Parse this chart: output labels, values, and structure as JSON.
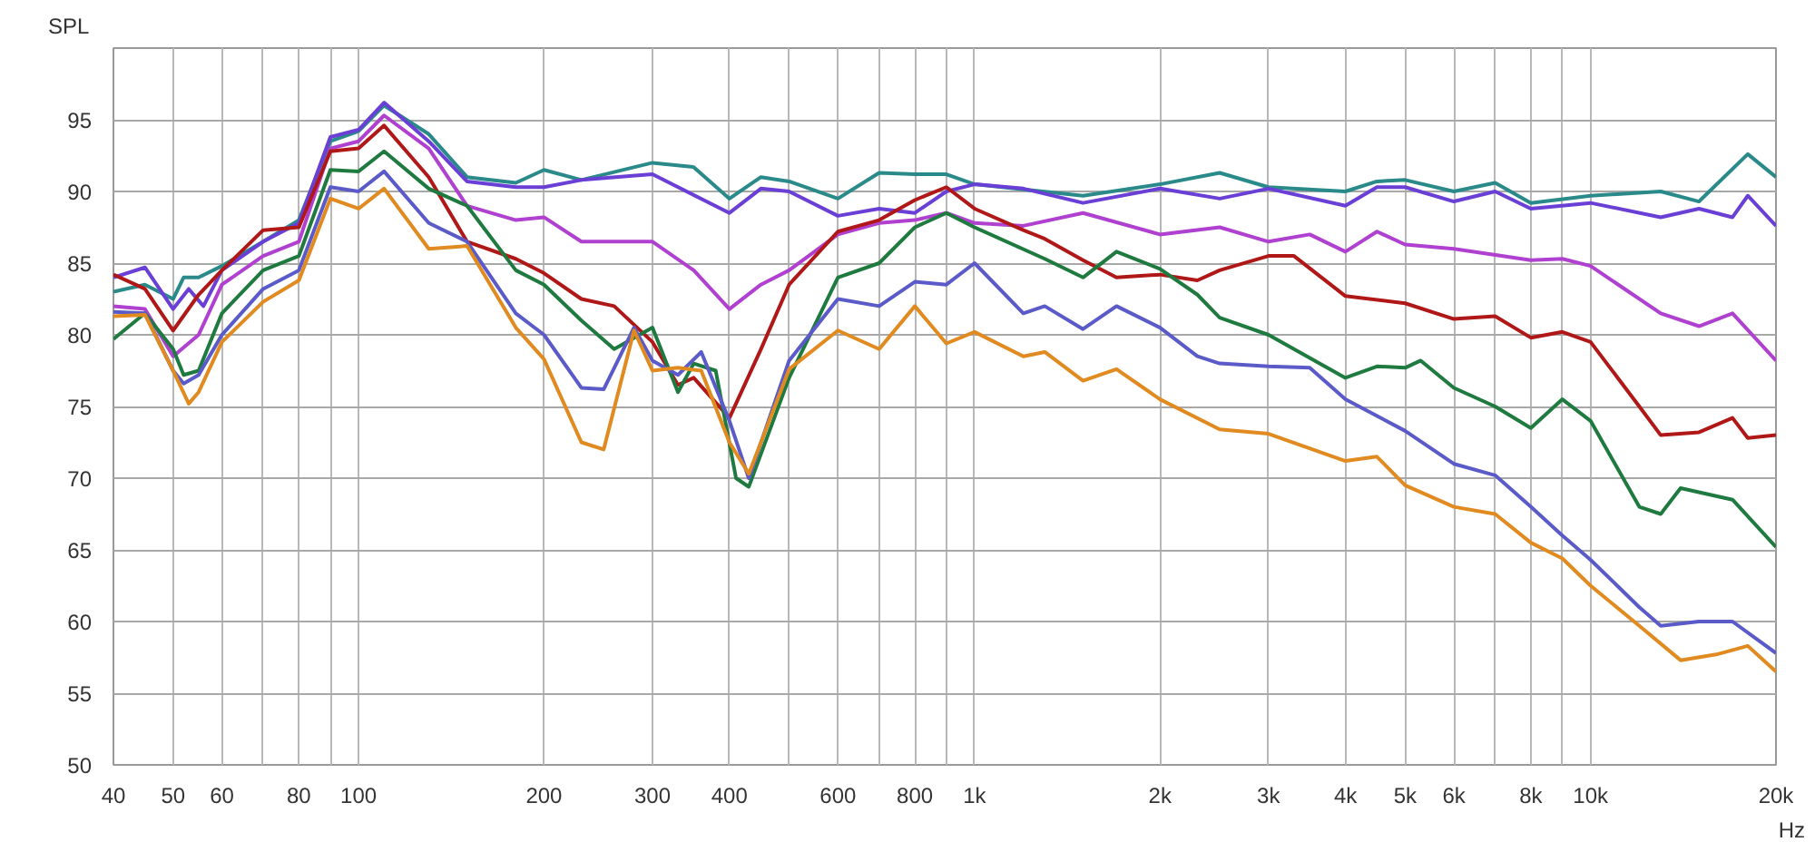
{
  "chart_data": {
    "type": "line",
    "ylabel": "SPL",
    "xlabel": "Hz",
    "xlim": [
      40,
      20000
    ],
    "ylim": [
      50,
      100
    ],
    "xticks": [
      40,
      50,
      60,
      {
        "value": 70,
        "label": null
      },
      80,
      {
        "value": 90,
        "label": null
      },
      100,
      200,
      300,
      400,
      {
        "value": 500,
        "label": null
      },
      600,
      {
        "value": 700,
        "label": null
      },
      800,
      {
        "value": 900,
        "label": null
      },
      {
        "value": 1000,
        "label": "1k"
      },
      {
        "value": 2000,
        "label": "2k"
      },
      {
        "value": 3000,
        "label": "3k"
      },
      {
        "value": 4000,
        "label": "4k"
      },
      {
        "value": 5000,
        "label": "5k"
      },
      {
        "value": 6000,
        "label": "6k"
      },
      {
        "value": 7000,
        "label": null
      },
      {
        "value": 8000,
        "label": "8k"
      },
      {
        "value": 9000,
        "label": null
      },
      {
        "value": 10000,
        "label": "10k"
      },
      {
        "value": 20000,
        "label": "20k"
      }
    ],
    "yticks": [
      50,
      55,
      60,
      65,
      70,
      75,
      80,
      85,
      90,
      95
    ],
    "log": "x",
    "grid": true,
    "marker": "none",
    "line_style": "solid",
    "series": [
      {
        "color": "#2a8a8a",
        "x": [
          40,
          45,
          50,
          52,
          55,
          60,
          70,
          80,
          90,
          100,
          110,
          130,
          150,
          180,
          200,
          230,
          300,
          350,
          400,
          450,
          500,
          600,
          700,
          800,
          900,
          1000,
          1500,
          2000,
          2500,
          3000,
          4000,
          4500,
          5000,
          6000,
          7000,
          8000,
          10000,
          13000,
          15000,
          18000,
          20000
        ],
        "values": [
          83,
          83.5,
          82.5,
          84,
          84,
          84.8,
          86.5,
          88,
          93.5,
          94.2,
          96,
          94,
          91,
          90.6,
          91.5,
          90.8,
          92,
          91.7,
          89.5,
          91,
          90.7,
          89.5,
          91.3,
          91.2,
          91.2,
          90.5,
          89.7,
          90.5,
          91.3,
          90.3,
          90,
          90.7,
          90.8,
          90,
          90.6,
          89.2,
          89.7,
          90,
          89.3,
          92.6,
          91
        ]
      },
      {
        "color": "#6a3fd6",
        "x": [
          40,
          45,
          50,
          53,
          56,
          60,
          70,
          80,
          90,
          100,
          110,
          130,
          150,
          180,
          200,
          230,
          300,
          400,
          450,
          500,
          600,
          700,
          800,
          900,
          1000,
          1200,
          1500,
          2000,
          2500,
          3000,
          4000,
          4500,
          5000,
          6000,
          7000,
          8000,
          10000,
          13000,
          15000,
          17000,
          18000,
          20000
        ],
        "values": [
          84,
          84.7,
          81.8,
          83.2,
          82,
          84.5,
          86.5,
          87.8,
          93.8,
          94.3,
          96.2,
          93.5,
          90.7,
          90.3,
          90.3,
          90.8,
          91.2,
          88.5,
          90.2,
          90,
          88.3,
          88.8,
          88.5,
          90,
          90.5,
          90.2,
          89.2,
          90.2,
          89.5,
          90.2,
          89,
          90.3,
          90.3,
          89.3,
          90,
          88.8,
          89.2,
          88.2,
          88.8,
          88.2,
          89.7,
          87.6
        ]
      },
      {
        "color": "#b040d0",
        "x": [
          40,
          45,
          50,
          55,
          60,
          70,
          80,
          90,
          100,
          110,
          130,
          150,
          180,
          200,
          230,
          300,
          350,
          400,
          450,
          500,
          600,
          700,
          800,
          900,
          1000,
          1200,
          1500,
          2000,
          2500,
          3000,
          3500,
          4000,
          4500,
          5000,
          6000,
          8000,
          9000,
          10000,
          13000,
          15000,
          17000,
          20000
        ],
        "values": [
          82,
          81.8,
          78.5,
          80,
          83.5,
          85.5,
          86.5,
          93,
          93.5,
          95.3,
          93,
          89,
          88,
          88.2,
          86.5,
          86.5,
          84.5,
          81.8,
          83.5,
          84.5,
          87,
          87.8,
          88,
          88.5,
          87.8,
          87.6,
          88.5,
          87,
          87.5,
          86.5,
          87,
          85.8,
          87.2,
          86.3,
          86,
          85.2,
          85.3,
          84.8,
          81.5,
          80.6,
          81.5,
          78.2
        ]
      },
      {
        "color": "#b01818",
        "x": [
          40,
          45,
          50,
          55,
          60,
          70,
          80,
          90,
          100,
          110,
          130,
          150,
          180,
          200,
          230,
          260,
          300,
          330,
          350,
          400,
          450,
          500,
          600,
          700,
          800,
          900,
          1000,
          1200,
          1300,
          1500,
          1700,
          2000,
          2300,
          2500,
          3000,
          3300,
          4000,
          5000,
          6000,
          7000,
          8000,
          9000,
          10000,
          12000,
          13000,
          15000,
          17000,
          18000,
          20000
        ],
        "values": [
          84.2,
          83.2,
          80.3,
          82.8,
          84.5,
          87.3,
          87.5,
          92.8,
          93,
          94.6,
          91,
          86.5,
          85.3,
          84.3,
          82.5,
          82,
          79.5,
          76.5,
          77,
          74.2,
          79,
          83.5,
          87.2,
          88,
          89.4,
          90.3,
          88.8,
          87.3,
          86.7,
          85.2,
          84,
          84.2,
          83.8,
          84.5,
          85.5,
          85.5,
          82.7,
          82.2,
          81.1,
          81.3,
          79.8,
          80.2,
          79.5,
          75,
          73,
          73.2,
          74.2,
          72.8,
          73
        ]
      },
      {
        "color": "#1f7a40",
        "x": [
          40,
          45,
          50,
          52,
          55,
          60,
          70,
          80,
          90,
          100,
          110,
          130,
          150,
          180,
          200,
          230,
          260,
          300,
          330,
          350,
          380,
          410,
          430,
          500,
          600,
          700,
          800,
          900,
          1000,
          1300,
          1500,
          1700,
          2000,
          2300,
          2500,
          3000,
          4000,
          4500,
          5000,
          5300,
          6000,
          7000,
          8000,
          9000,
          10000,
          12000,
          13000,
          14000,
          17000,
          20000
        ],
        "values": [
          79.7,
          81.5,
          79,
          77.2,
          77.5,
          81.5,
          84.5,
          85.5,
          91.5,
          91.4,
          92.8,
          90.2,
          89,
          84.5,
          83.5,
          81,
          79,
          80.5,
          76,
          78,
          77.5,
          70,
          69.4,
          77,
          84,
          85,
          87.5,
          88.5,
          87.5,
          85.3,
          84,
          85.8,
          84.6,
          82.8,
          81.2,
          80,
          77,
          77.8,
          77.7,
          78.2,
          76.3,
          75,
          73.5,
          75.5,
          74,
          68,
          67.5,
          69.3,
          68.5,
          65.2
        ]
      },
      {
        "color": "#5a5ac8",
        "x": [
          40,
          45,
          50,
          52,
          55,
          60,
          70,
          80,
          90,
          100,
          110,
          130,
          150,
          180,
          200,
          230,
          250,
          280,
          300,
          330,
          360,
          400,
          430,
          500,
          600,
          700,
          800,
          900,
          1000,
          1200,
          1300,
          1500,
          1700,
          2000,
          2300,
          2500,
          3000,
          3500,
          4000,
          5000,
          6000,
          7000,
          8000,
          9000,
          10000,
          12000,
          13000,
          15000,
          17000,
          20000
        ],
        "values": [
          81.6,
          81.5,
          77.5,
          76.6,
          77.2,
          80,
          83.2,
          84.5,
          90.3,
          90,
          91.4,
          87.8,
          86.5,
          81.5,
          80,
          76.3,
          76.2,
          80.5,
          78.2,
          77.2,
          78.8,
          74,
          70,
          78.2,
          82.5,
          82,
          83.7,
          83.5,
          85,
          81.5,
          82,
          80.4,
          82,
          80.5,
          78.5,
          78,
          77.8,
          77.7,
          75.5,
          73.3,
          71,
          70.2,
          68,
          66,
          64.3,
          61,
          59.7,
          60,
          60,
          57.8
        ]
      },
      {
        "color": "#e08a20",
        "x": [
          40,
          45,
          50,
          53,
          55,
          60,
          70,
          80,
          90,
          100,
          110,
          130,
          150,
          180,
          200,
          230,
          250,
          280,
          300,
          330,
          360,
          400,
          430,
          500,
          600,
          700,
          800,
          900,
          1000,
          1200,
          1300,
          1500,
          1700,
          2000,
          2500,
          3000,
          4000,
          4500,
          5000,
          6000,
          7000,
          8000,
          9000,
          10000,
          12000,
          14000,
          16000,
          18000,
          20000
        ],
        "values": [
          81.3,
          81.4,
          77.5,
          75.2,
          76,
          79.5,
          82.3,
          83.8,
          89.5,
          88.8,
          90.2,
          86,
          86.2,
          80.5,
          78.3,
          72.5,
          72,
          80.3,
          77.5,
          77.7,
          77.5,
          72.5,
          70.3,
          77.6,
          80.3,
          79,
          82,
          79.4,
          80.2,
          78.5,
          78.8,
          76.8,
          77.6,
          75.5,
          73.4,
          73.1,
          71.2,
          71.5,
          69.5,
          68,
          67.5,
          65.5,
          64.4,
          62.5,
          59.7,
          57.3,
          57.7,
          58.3,
          56.5
        ]
      }
    ]
  }
}
